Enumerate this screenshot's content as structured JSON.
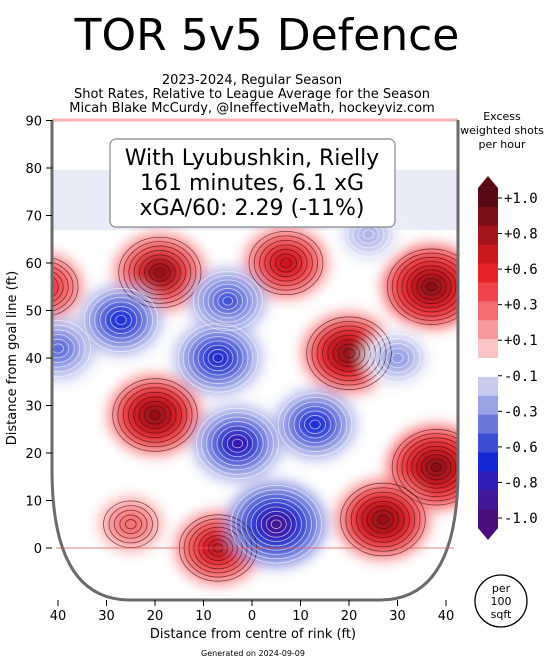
{
  "chart_data": {
    "type": "heatmap",
    "title": "TOR 5v5 Defence",
    "subtitle_lines": [
      "2023-2024, Regular Season",
      "Shot Rates, Relative to League Average for the Season",
      "Micah Blake McCurdy, @IneffectiveMath, hockeyviz.com"
    ],
    "info_box": [
      "With Lyubushkin, Rielly",
      "161 minutes, 6.1 xG",
      "xGA/60: 2.29 (-11%)"
    ],
    "xlabel": "Distance from centre of rink (ft)",
    "ylabel": "Distance from goal line (ft)",
    "x_ticks": [
      "40",
      "30",
      "20",
      "10",
      "0",
      "10",
      "20",
      "30",
      "40"
    ],
    "y_ticks": [
      "0",
      "10",
      "20",
      "30",
      "40",
      "50",
      "60",
      "70",
      "80",
      "90"
    ],
    "xlim": [
      -42.5,
      42.5
    ],
    "ylim": [
      -11,
      90
    ],
    "colorbar": {
      "title_lines": [
        "Excess",
        "weighted shots",
        "per hour"
      ],
      "tick_labels": [
        "+1.0",
        "+0.8",
        "+0.6",
        "+0.3",
        "+0.1",
        "-0.1",
        "-0.3",
        "-0.6",
        "-0.8",
        "-1.0"
      ],
      "colors": [
        "#5a0a14",
        "#7d0f16",
        "#a3141b",
        "#c9191f",
        "#e8242a",
        "#f0454b",
        "#f46c70",
        "#f89a9c",
        "#fbc4c5",
        "#ffffff",
        "#c7ccef",
        "#9aa3e6",
        "#6a78dc",
        "#3b4ed4",
        "#1428d6",
        "#2e1fb8",
        "#42189a",
        "#4a0f7c"
      ]
    },
    "hotspots": [
      {
        "x": -19,
        "y": 58,
        "value": 0.85
      },
      {
        "x": -43,
        "y": 55,
        "value": 0.6
      },
      {
        "x": 7,
        "y": 60,
        "value": 0.7
      },
      {
        "x": 37,
        "y": 55,
        "value": 0.95
      },
      {
        "x": 20,
        "y": 41,
        "value": 0.9
      },
      {
        "x": -20,
        "y": 28,
        "value": 0.9
      },
      {
        "x": 38,
        "y": 17,
        "value": 0.95
      },
      {
        "x": 27,
        "y": 6,
        "value": 0.9
      },
      {
        "x": -7,
        "y": 0,
        "value": 0.75
      },
      {
        "x": -25,
        "y": 5,
        "value": 0.35
      },
      {
        "x": -27,
        "y": 48,
        "value": -0.7
      },
      {
        "x": -5,
        "y": 52,
        "value": -0.6
      },
      {
        "x": 5,
        "y": 5,
        "value": -1.0
      },
      {
        "x": -3,
        "y": 22,
        "value": -0.85
      },
      {
        "x": -7,
        "y": 40,
        "value": -0.8
      },
      {
        "x": 13,
        "y": 26,
        "value": -0.7
      },
      {
        "x": -40,
        "y": 42,
        "value": -0.55
      },
      {
        "x": 30,
        "y": 40,
        "value": -0.4
      },
      {
        "x": 24,
        "y": 66,
        "value": -0.3
      }
    ],
    "badge_lines": [
      "per",
      "100",
      "sqft"
    ],
    "footer": "Generated on 2024-09-09"
  }
}
